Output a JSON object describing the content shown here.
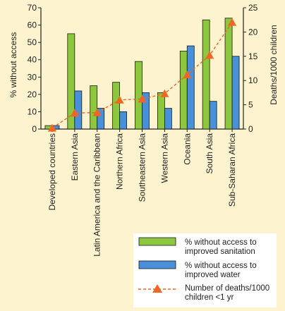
{
  "colors": {
    "background": "#fdf3cf",
    "sanitation": "#8dc63f",
    "water": "#4a90d9",
    "deaths": "#f26522",
    "axis": "#222222"
  },
  "chart_data": {
    "type": "bar",
    "categories": [
      "Developed countries",
      "Eastern Asia",
      "Latin America and the Caribbean",
      "Northern Africa",
      "Southeastern Asia",
      "Western Asia",
      "Oceania",
      "South Asia",
      "Sub-Saharan Africa"
    ],
    "series": [
      {
        "name": "% without access to improved sanitation",
        "axis": "left",
        "type": "bar",
        "values": [
          2,
          55,
          25,
          27,
          39,
          21,
          45,
          63,
          64
        ]
      },
      {
        "name": "% without access to improved water",
        "axis": "left",
        "type": "bar",
        "values": [
          2,
          22,
          12,
          10,
          21,
          12,
          48,
          16,
          42
        ]
      },
      {
        "name": "Number of deaths/1000 children <1 yr",
        "axis": "right",
        "type": "line",
        "values": [
          0.2,
          3.3,
          3.4,
          6.0,
          6.2,
          7.3,
          11.2,
          15.2,
          22.0
        ]
      }
    ],
    "ylabel": "% without access",
    "y2label": "Deaths/1000 children",
    "ylim": [
      0,
      70
    ],
    "y2lim": [
      0,
      25
    ],
    "yticks": [
      0,
      10,
      20,
      30,
      40,
      50,
      60,
      70
    ],
    "y2ticks": [
      0,
      5,
      10,
      15,
      20,
      25
    ],
    "legend": {
      "position": "bottom-right",
      "entries": [
        {
          "lines": [
            "% without access to",
            "improved sanitation"
          ]
        },
        {
          "lines": [
            "% without access to",
            "improved water"
          ]
        },
        {
          "lines": [
            "Number of deaths/1000",
            "children <1 yr"
          ]
        }
      ]
    }
  }
}
